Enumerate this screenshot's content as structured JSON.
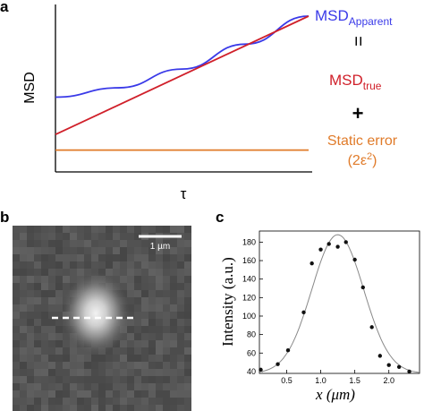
{
  "panels": {
    "a": {
      "label": "a"
    },
    "b": {
      "label": "b"
    },
    "c": {
      "label": "c"
    }
  },
  "colors": {
    "apparent": "#3a3ae8",
    "true": "#d0202a",
    "static": "#e07b2a",
    "fit": "#888888",
    "points": "#111111"
  },
  "equation": {
    "apparent_main": "MSD",
    "apparent_sub": "Apparent",
    "equals": "=",
    "true_main": "MSD",
    "true_sub": "true",
    "plus": "+",
    "static_line1": "Static error",
    "static_line2_pre": "(2ε",
    "static_line2_sup": "2",
    "static_line2_post": ")"
  },
  "scalebar": {
    "label": "1 µm"
  },
  "chart_data": [
    {
      "type": "line",
      "panel": "a",
      "xlabel": "τ",
      "ylabel": "MSD",
      "series": [
        {
          "name": "MSD_Apparent",
          "x": [
            0,
            0.25,
            0.5,
            0.75,
            1.0
          ],
          "y": [
            0.48,
            0.54,
            0.66,
            0.82,
            1.0
          ]
        },
        {
          "name": "MSD_true",
          "x": [
            0,
            1.0
          ],
          "y": [
            0.24,
            1.0
          ]
        },
        {
          "name": "Static error (2ε²)",
          "x": [
            0,
            1.0
          ],
          "y": [
            0.14,
            0.14
          ]
        }
      ]
    },
    {
      "type": "scatter",
      "panel": "c",
      "xlabel": "x (μm)",
      "ylabel": "Intensity (a.u.)",
      "xticks": [
        "0.5",
        "1.0",
        "1.5",
        "2.0"
      ],
      "yticks": [
        "40",
        "60",
        "80",
        "100",
        "120",
        "140",
        "160",
        "180"
      ],
      "xlim": [
        0.1,
        2.45
      ],
      "ylim": [
        38,
        192
      ],
      "points": {
        "x": [
          0.12,
          0.37,
          0.52,
          0.75,
          0.87,
          1.0,
          1.12,
          1.25,
          1.37,
          1.5,
          1.62,
          1.75,
          1.87,
          2.0,
          2.15,
          2.3
        ],
        "y": [
          42,
          48,
          63,
          104,
          157,
          172,
          178,
          175,
          180,
          161,
          131,
          88,
          57,
          47,
          45,
          40
        ]
      },
      "fit": {
        "type": "gaussian",
        "amplitude": 150,
        "center": 1.25,
        "sigma": 0.38,
        "offset": 38
      }
    }
  ]
}
